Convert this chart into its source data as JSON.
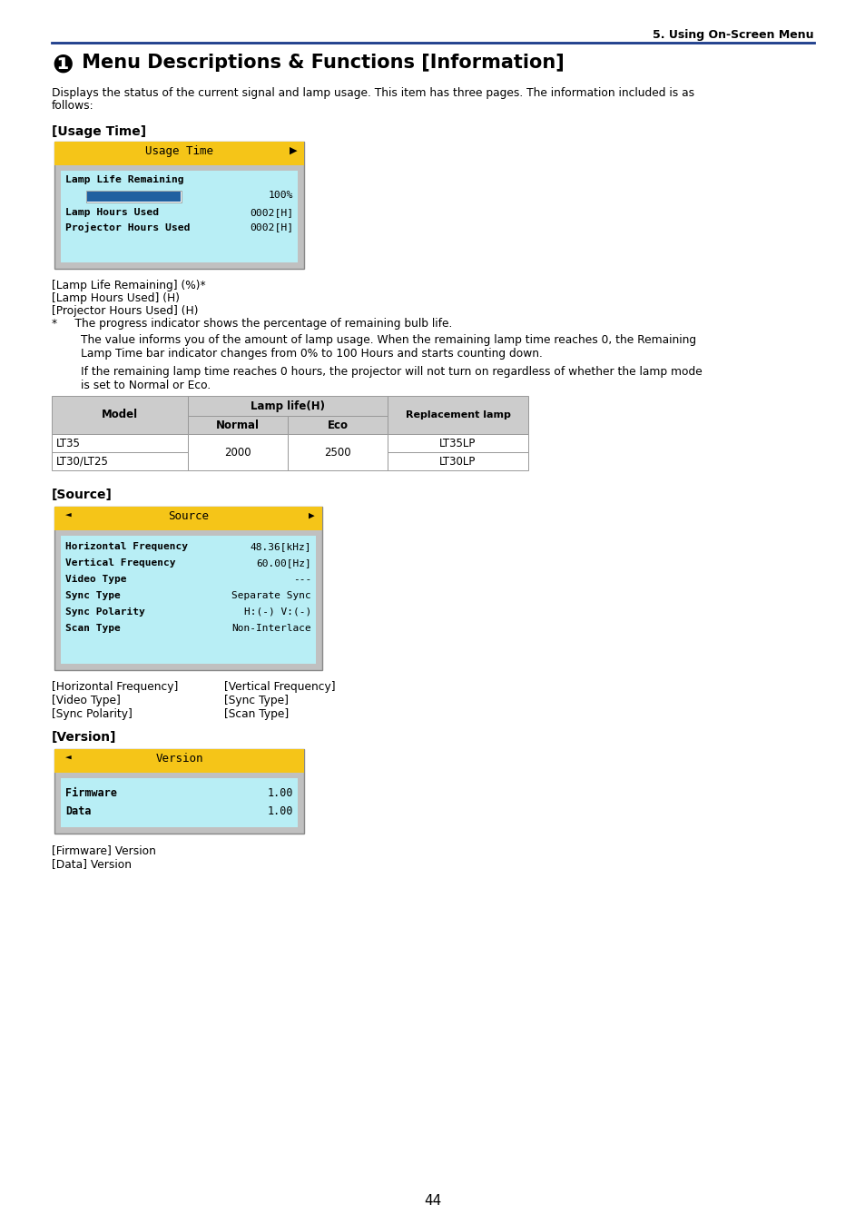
{
  "page_header": "5. Using On-Screen Menu",
  "title_circle": "❶",
  "title_text": " Menu Descriptions & Functions [Information]",
  "intro_text": "Displays the status of the current signal and lamp usage. This item has three pages. The information included is as follows:",
  "section1_title": "[Usage Time]",
  "usage_time_menu_title": "Usage Time",
  "usage_notes": [
    "[Lamp Life Remaining] (%)*",
    "[Lamp Hours Used] (H)",
    "[Projector Hours Used] (H)"
  ],
  "asterisk_note1": "*     The progress indicator shows the percentage of remaining bulb life.",
  "para1_line1": "The value informs you of the amount of lamp usage. When the remaining lamp time reaches 0, the Remaining",
  "para1_line2": "Lamp Time bar indicator changes from 0% to 100 Hours and starts counting down.",
  "para2_line1": "If the remaining lamp time reaches 0 hours, the projector will not turn on regardless of whether the lamp mode",
  "para2_line2": "is set to Normal or Eco.",
  "section2_title": "[Source]",
  "source_menu_title": "Source",
  "source_rows": [
    {
      "label": "Horizontal Frequency",
      "value": "48.36[kHz]"
    },
    {
      "label": "Vertical Frequency",
      "value": "60.00[Hz]"
    },
    {
      "label": "Video Type",
      "value": "---"
    },
    {
      "label": "Sync Type",
      "value": "Separate Sync"
    },
    {
      "label": "Sync Polarity",
      "value": "H:(-) V:(-)"
    },
    {
      "label": "Scan Type",
      "value": "Non-Interlace"
    }
  ],
  "source_notes": [
    [
      "[Horizontal Frequency]",
      "[Vertical Frequency]"
    ],
    [
      "[Video Type]",
      "[Sync Type]"
    ],
    [
      "[Sync Polarity]",
      "[Scan Type]"
    ]
  ],
  "section3_title": "[Version]",
  "version_menu_title": "Version",
  "version_rows": [
    {
      "label": "Firmware",
      "value": "1.00"
    },
    {
      "label": "Data",
      "value": "1.00"
    }
  ],
  "version_notes": [
    "[Firmware] Version",
    "[Data] Version"
  ],
  "page_number": "44",
  "color_yellow": "#f5c518",
  "color_cyan": "#b8eef5",
  "color_gray": "#c0c0c0",
  "color_bar_blue": "#2060a0",
  "color_blue_rule": "#1a3a8a",
  "color_tbl_hdr": "#cccccc",
  "color_tbl_bdr": "#999999"
}
